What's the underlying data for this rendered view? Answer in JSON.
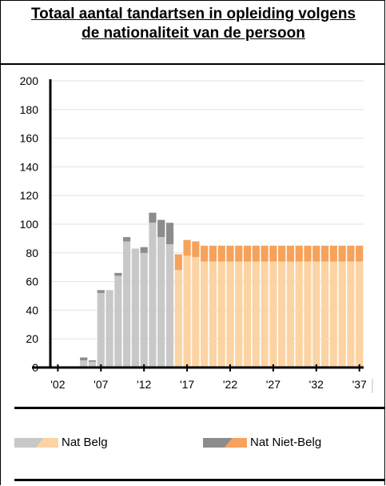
{
  "title_line1": "Totaal aantal tandartsen in opleiding volgens",
  "title_line2": "de nationaliteit van de persoon",
  "legend": {
    "belg_label": "Nat Belg",
    "niet_belg_label": "Nat Niet-Belg"
  },
  "colors": {
    "belg_hist": "#c8c8c8",
    "niet_belg_hist": "#8c8c8c",
    "belg_proj": "#fcd3a3",
    "niet_belg_proj": "#f6a25b",
    "axis": "#000000",
    "grid": "#e2e2e2"
  },
  "chart_data": {
    "type": "bar",
    "stacked": true,
    "grid": true,
    "ylim": [
      0,
      200
    ],
    "y_ticks": [
      "0",
      "20",
      "40",
      "60",
      "80",
      "100",
      "120",
      "140",
      "160",
      "180",
      "200"
    ],
    "x_tick_labels": [
      "'02",
      "'07",
      "'12",
      "'17",
      "'22",
      "'27",
      "'32",
      "'37"
    ],
    "x_years": [
      2002,
      2003,
      2004,
      2005,
      2006,
      2007,
      2008,
      2009,
      2010,
      2011,
      2012,
      2013,
      2014,
      2015,
      2016,
      2017,
      2018,
      2019,
      2020,
      2021,
      2022,
      2023,
      2024,
      2025,
      2026,
      2027,
      2028,
      2029,
      2030,
      2031,
      2032,
      2033,
      2034,
      2035,
      2036,
      2037
    ],
    "projection_start_year": 2016,
    "series": [
      {
        "name": "Nat Belg",
        "values": [
          0,
          0,
          0,
          5,
          4,
          52,
          54,
          64,
          88,
          83,
          80,
          101,
          91,
          86,
          68,
          78,
          77,
          74,
          74,
          74,
          74,
          74,
          74,
          74,
          74,
          74,
          74,
          74,
          74,
          74,
          74,
          74,
          74,
          74,
          74,
          74
        ]
      },
      {
        "name": "Nat Niet-Belg",
        "values": [
          0,
          0,
          0,
          2,
          1,
          2,
          0,
          2,
          3,
          0,
          4,
          7,
          12,
          15,
          11,
          11,
          11,
          11,
          11,
          11,
          11,
          11,
          11,
          11,
          11,
          11,
          11,
          11,
          11,
          11,
          11,
          11,
          11,
          11,
          11,
          11
        ]
      }
    ]
  }
}
